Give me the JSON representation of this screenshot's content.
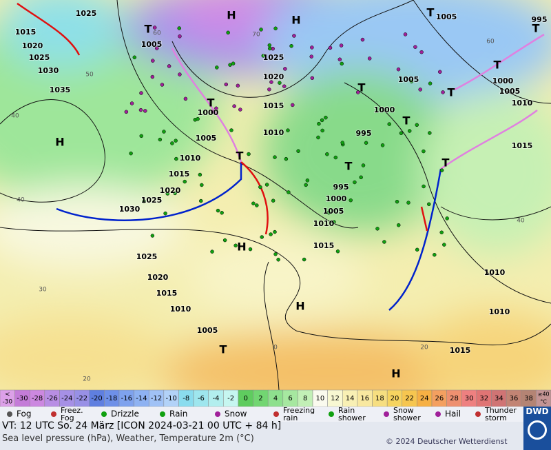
{
  "map": {
    "isobar_labels": [
      "1025",
      "1015",
      "1020",
      "1025",
      "1030",
      "1035",
      "1005",
      "1025",
      "1020",
      "1015",
      "1010",
      "1000",
      "1005",
      "1010",
      "1015",
      "1020",
      "1025",
      "1030",
      "1025",
      "1020",
      "1015",
      "1010",
      "1005",
      "1005",
      "1000",
      "995",
      "995",
      "1000",
      "1005",
      "1010",
      "1015",
      "1005",
      "1000",
      "1005",
      "1010",
      "1015",
      "1010",
      "1010",
      "1015",
      "995"
    ],
    "isotherm_labels": [
      "60",
      "70",
      "50",
      "40",
      "40",
      "30",
      "20",
      "0",
      "20",
      "60",
      "40"
    ],
    "highs": [
      "H",
      "H",
      "H",
      "H",
      "H",
      "H"
    ],
    "lows": [
      "T",
      "T",
      "T",
      "T",
      "T",
      "T",
      "T",
      "T",
      "T",
      "T",
      "T",
      "T"
    ]
  },
  "colorbar": {
    "low_symbol": "<",
    "low_value": "-30",
    "values": [
      -30,
      -28,
      -26,
      -24,
      -22,
      -20,
      -18,
      -16,
      -14,
      -12,
      -10,
      -8,
      -6,
      -4,
      -2,
      0,
      2,
      4,
      6,
      8,
      10,
      12,
      14,
      16,
      18,
      20,
      22,
      24,
      26,
      28,
      30,
      32,
      34,
      36,
      38
    ],
    "colors": [
      "#c47cd8",
      "#cc88e0",
      "#b88ee4",
      "#a690e6",
      "#9890e6",
      "#5f7fe0",
      "#6e90e8",
      "#7ea2ee",
      "#8eb2f2",
      "#a0c2f6",
      "#b2d2f8",
      "#8adcee",
      "#9ee6ee",
      "#b2eeee",
      "#c6f6f0",
      "#5fcc5f",
      "#72d672",
      "#8ee08e",
      "#a6e8a0",
      "#c2f0b6",
      "#fafaee",
      "#f8f8d2",
      "#f8f0b4",
      "#f8e8a0",
      "#f6de80",
      "#f6d460",
      "#f6c650",
      "#f6b044",
      "#f4a060",
      "#ee9070",
      "#ee8080",
      "#e07474",
      "#d07474",
      "#c28474",
      "#b48474"
    ],
    "low_color": "#dca0e8",
    "high_symbol": "≥40",
    "high_unit": "°C",
    "high_color": "#c49494"
  },
  "legend": [
    "Fog",
    "Freez. Fog",
    "Drizzle",
    "Rain",
    "Snow",
    "Freezing rain",
    "Rain shower",
    "Snow shower",
    "Hail",
    "Thunder storm"
  ],
  "footer": {
    "valid_time": "VT: 12 UTC So.  24 März [ICON 2024-03-21  00 UTC + 84 h]",
    "description": "Sea level pressure (hPa), Weather, Temperature 2m (°C)",
    "copyright": "© 2024 Deutscher Wetterdienst",
    "logo": "DWD"
  }
}
